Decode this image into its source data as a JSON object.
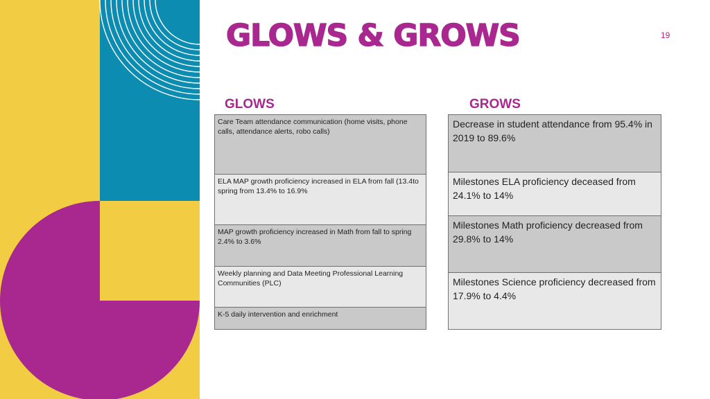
{
  "slide": {
    "title": "GLOWS & GROWS",
    "page_number": "19"
  },
  "glows": {
    "header": "GLOWS",
    "items": [
      "Care Team attendance communication (home visits, phone calls, attendance alerts, robo calls)",
      "ELA MAP growth proficiency increased in ELA from fall (13.4to spring from 13.4% to 16.9%",
      "MAP growth proficiency increased in Math from fall to spring 2.4% to 3.6%",
      "Weekly planning and Data Meeting Professional Learning Communities (PLC)",
      "K-5 daily intervention and enrichment"
    ]
  },
  "grows": {
    "header": "GROWS",
    "items": [
      "Decrease in student attendance from 95.4% in 2019 to 89.6%",
      "Milestones ELA proficiency deceased from 24.1% to 14%",
      "Milestones Math proficiency decreased from 29.8% to 14%",
      "Milestones Science proficiency decreased from 17.9% to 4.4%"
    ]
  },
  "colors": {
    "accent": "#a8288f",
    "yellow": "#f2cd44",
    "blue": "#0c8cb0",
    "magenta": "#a8288f",
    "cell_dark": "#c9c9c9",
    "cell_light": "#e8e8e8"
  }
}
